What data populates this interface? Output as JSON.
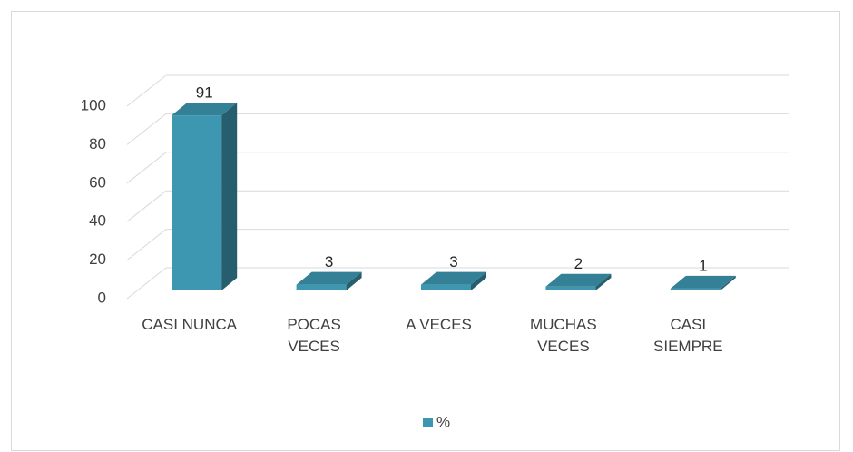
{
  "chart_data": {
    "type": "bar3d",
    "categories": [
      "CASI NUNCA",
      "POCAS\nVECES",
      "A VECES",
      "MUCHAS\nVECES",
      "CASI\nSIEMPRE"
    ],
    "series": [
      {
        "name": "%",
        "color": "#3d97b0",
        "values": [
          91,
          3,
          3,
          2,
          1
        ]
      }
    ],
    "ylim": [
      0,
      100
    ],
    "yticks": [
      0,
      20,
      40,
      60,
      80,
      100
    ],
    "grid": true,
    "legend": "bottom"
  }
}
